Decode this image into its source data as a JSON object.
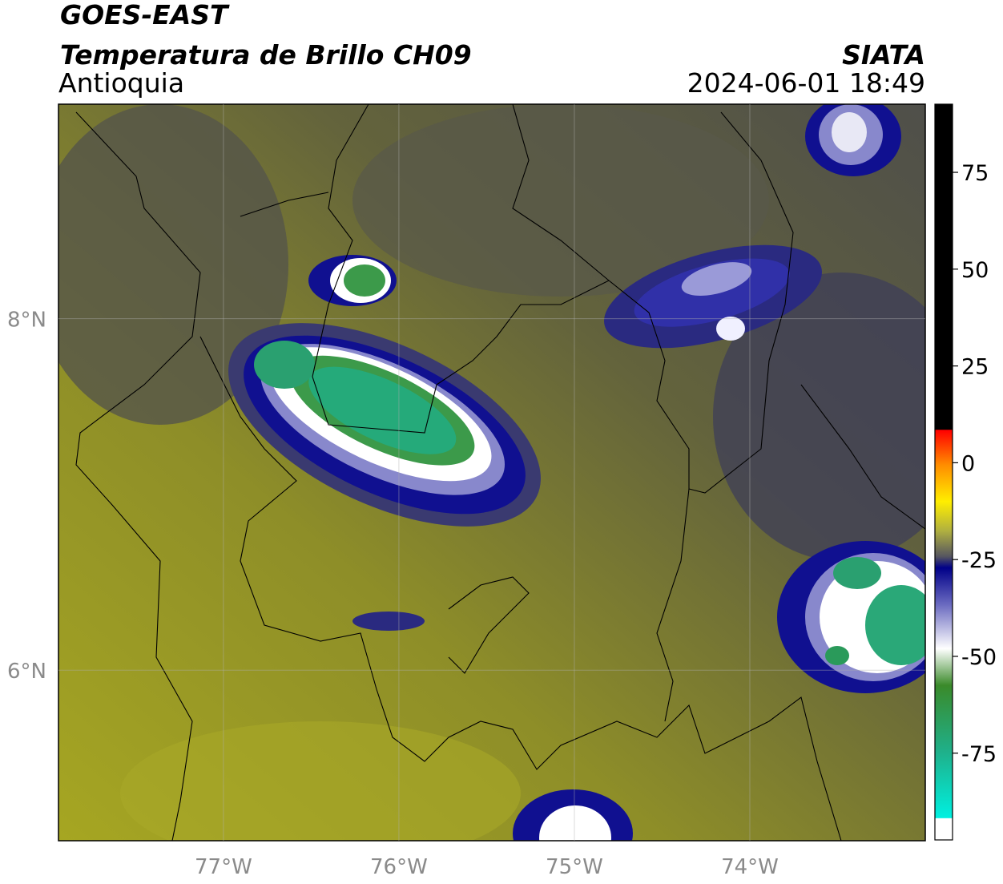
{
  "header": {
    "satellite": "GOES-EAST",
    "product": "Temperatura de Brillo CH09",
    "region": "Antioquia",
    "source": "SIATA",
    "datetime": "2024-06-01 18:49"
  },
  "map": {
    "lonlim": [
      -77.94,
      -73.0
    ],
    "latlim": [
      5.03,
      9.22
    ],
    "lon_ticks": [
      {
        "value": -77,
        "label": "77°W"
      },
      {
        "value": -76,
        "label": "76°W"
      },
      {
        "value": -75,
        "label": "75°W"
      },
      {
        "value": -74,
        "label": "74°W"
      }
    ],
    "lat_ticks": [
      {
        "value": 8,
        "label": "8°N"
      },
      {
        "value": 6,
        "label": "6°N"
      }
    ]
  },
  "colorbar": {
    "lim": [
      -97.4,
      92.6
    ],
    "ticks": [
      75,
      50,
      25,
      0,
      -25,
      -50,
      -75
    ]
  }
}
